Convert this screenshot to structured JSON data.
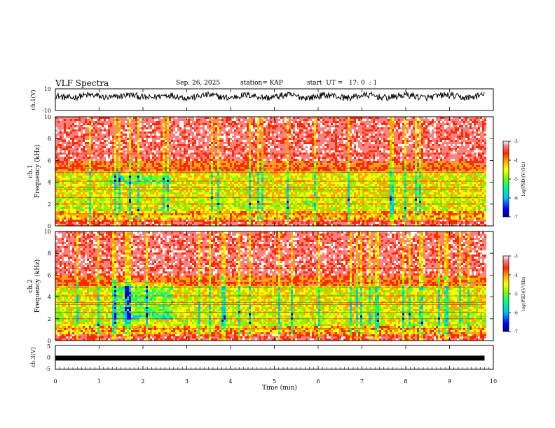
{
  "header": {
    "title": "VLF Spectra",
    "date": "Sep. 26, 2025",
    "station": "station= KAP",
    "start": "start  UT =   17: 0  : 1"
  },
  "colors": {
    "scale": [
      "#00008b",
      "#0000ff",
      "#00bfff",
      "#00ff88",
      "#7fff00",
      "#ffff00",
      "#ffa500",
      "#ff2a00",
      "#ff8080",
      "#ffffff"
    ],
    "frame": "#000000"
  },
  "chart_data": [
    {
      "type": "line",
      "panel": "ch1-waveform",
      "ylabel": "ch.1(V)",
      "ylim": [
        -10,
        10
      ],
      "tick_labels": [
        "10",
        "-10"
      ],
      "description_values": {
        "mean": 3,
        "amplitude": 3
      }
    },
    {
      "type": "heatmap",
      "panel": "ch1-spectrogram",
      "ylabel": "ch.1",
      "ylabel2": "Frequency  (kHz)",
      "ylim": [
        0,
        10
      ],
      "yticks": [
        "0",
        "2",
        "4",
        "6",
        "8",
        "10"
      ],
      "xlim": [
        0,
        10
      ],
      "data_extent_min": 9.8,
      "colorbar": {
        "label": "log(PSD)(V²/Hz)",
        "range": [
          -7,
          -3
        ],
        "ticks": [
          "-3",
          "-4",
          "-5",
          "-6",
          "-7"
        ]
      },
      "event": {
        "t_start": 1.2,
        "t_end": 2.6,
        "f_low": 3.9,
        "f_high": 4.8
      }
    },
    {
      "type": "heatmap",
      "panel": "ch2-spectrogram",
      "ylabel": "ch.2",
      "ylabel2": "Frequency  (kHz)",
      "ylim": [
        0,
        10
      ],
      "yticks": [
        "0",
        "2",
        "4",
        "6",
        "8",
        "10"
      ],
      "xlim": [
        0,
        10
      ],
      "data_extent_min": 9.8,
      "colorbar": {
        "label": "log(PSD)(V²/Hz)",
        "range": [
          -7,
          -3
        ],
        "ticks": [
          "-3",
          "-4",
          "-5",
          "-6",
          "-7"
        ]
      },
      "event": {
        "t_start": 1.3,
        "t_end": 2.65,
        "f_low": 2.0,
        "f_high": 5.5
      }
    },
    {
      "type": "line",
      "panel": "ch3-waveform",
      "ylabel": "ch.3(V)",
      "ylim": [
        -5,
        5
      ],
      "tick_labels": [
        "5",
        "0",
        "-5"
      ],
      "trace_level": -0.3
    }
  ],
  "xaxis": {
    "label": "Time  (min)",
    "ticks": [
      "0",
      "1",
      "2",
      "3",
      "4",
      "5",
      "6",
      "7",
      "8",
      "9",
      "10"
    ]
  }
}
